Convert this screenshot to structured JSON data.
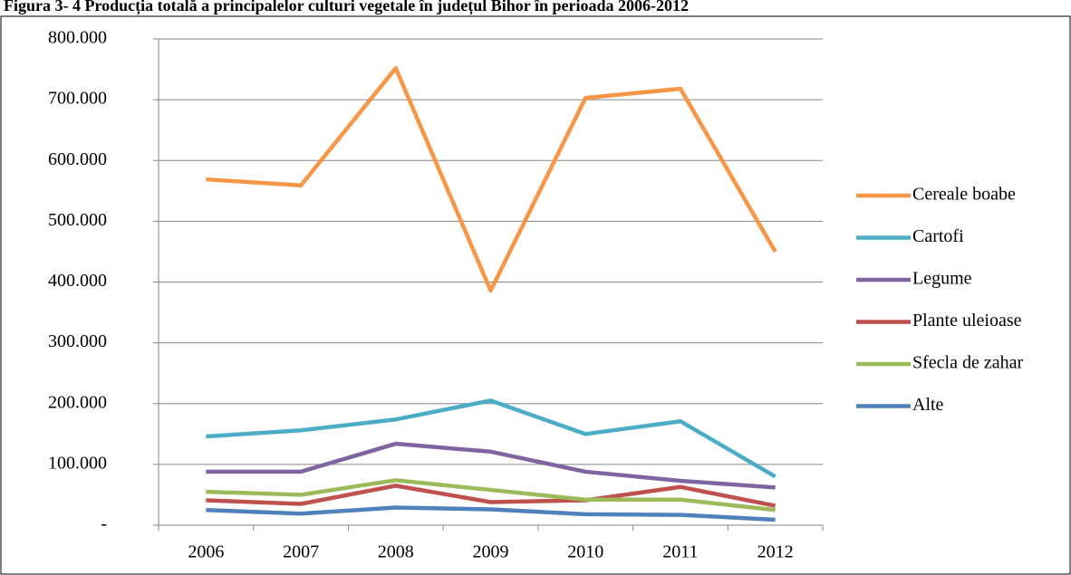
{
  "chart_data": {
    "type": "line",
    "title": "Figura 3- 4 Producția totală a principalelor culturi vegetale în județul Bihor în perioada 2006-2012",
    "categories": [
      "2006",
      "2007",
      "2008",
      "2009",
      "2010",
      "2011",
      "2012"
    ],
    "series": [
      {
        "name": "Cereale boabe",
        "color": "#f79646",
        "values": [
          569000,
          559000,
          752000,
          386000,
          703000,
          718000,
          450000
        ]
      },
      {
        "name": "Cartofi",
        "color": "#4bacc6",
        "values": [
          146000,
          156000,
          174000,
          205000,
          150000,
          171000,
          80000
        ]
      },
      {
        "name": "Legume",
        "color": "#8064a2",
        "values": [
          88000,
          88000,
          134000,
          121000,
          88000,
          73000,
          62000
        ]
      },
      {
        "name": "Plante uleioase",
        "color": "#c0504d",
        "values": [
          41000,
          35000,
          65000,
          38000,
          41000,
          63000,
          32000
        ]
      },
      {
        "name": "Sfecla de zahar",
        "color": "#9bbb59",
        "values": [
          55000,
          50000,
          74000,
          58000,
          42000,
          42000,
          25000
        ]
      },
      {
        "name": "Alte",
        "color": "#4f81bd",
        "values": [
          25000,
          19000,
          29000,
          26000,
          18000,
          17000,
          9000
        ]
      }
    ],
    "ylim": [
      0,
      800000
    ],
    "yticks": [
      {
        "value": 0,
        "label": "-"
      },
      {
        "value": 100000,
        "label": "100.000"
      },
      {
        "value": 200000,
        "label": "200.000"
      },
      {
        "value": 300000,
        "label": "300.000"
      },
      {
        "value": 400000,
        "label": "400.000"
      },
      {
        "value": 500000,
        "label": "500.000"
      },
      {
        "value": 600000,
        "label": "600.000"
      },
      {
        "value": 700000,
        "label": "700.000"
      },
      {
        "value": 800000,
        "label": "800.000"
      }
    ],
    "grid": true,
    "legend": "right"
  }
}
